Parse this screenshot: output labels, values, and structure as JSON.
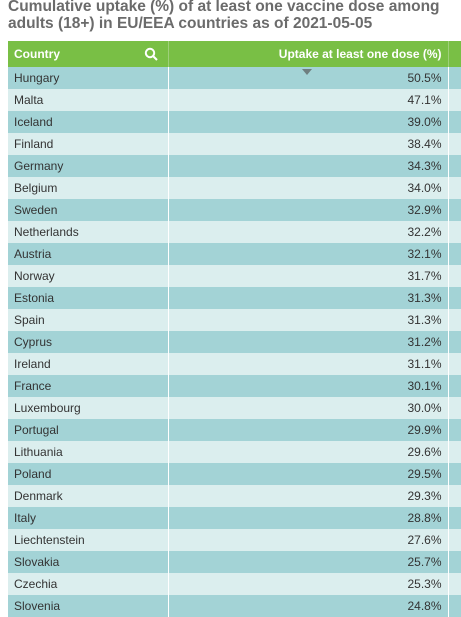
{
  "title": "Cumulative uptake (%) of at least one vaccine dose among adults (18+) in EU/EEA countries as of 2021-05-05",
  "table": {
    "columns": [
      "Country",
      "Uptake at least one dose (%)"
    ],
    "rows": [
      [
        "Hungary",
        "50.5%"
      ],
      [
        "Malta",
        "47.1%"
      ],
      [
        "Iceland",
        "39.0%"
      ],
      [
        "Finland",
        "38.4%"
      ],
      [
        "Germany",
        "34.3%"
      ],
      [
        "Belgium",
        "34.0%"
      ],
      [
        "Sweden",
        "32.9%"
      ],
      [
        "Netherlands",
        "32.2%"
      ],
      [
        "Austria",
        "32.1%"
      ],
      [
        "Norway",
        "31.7%"
      ],
      [
        "Estonia",
        "31.3%"
      ],
      [
        "Spain",
        "31.3%"
      ],
      [
        "Cyprus",
        "31.2%"
      ],
      [
        "Ireland",
        "31.1%"
      ],
      [
        "France",
        "30.1%"
      ],
      [
        "Luxembourg",
        "30.0%"
      ],
      [
        "Portugal",
        "29.9%"
      ],
      [
        "Lithuania",
        "29.6%"
      ],
      [
        "Poland",
        "29.5%"
      ],
      [
        "Denmark",
        "29.3%"
      ],
      [
        "Italy",
        "28.8%"
      ],
      [
        "Liechtenstein",
        "27.6%"
      ],
      [
        "Slovakia",
        "25.7%"
      ],
      [
        "Czechia",
        "25.3%"
      ],
      [
        "Slovenia",
        "24.8%"
      ]
    ]
  }
}
